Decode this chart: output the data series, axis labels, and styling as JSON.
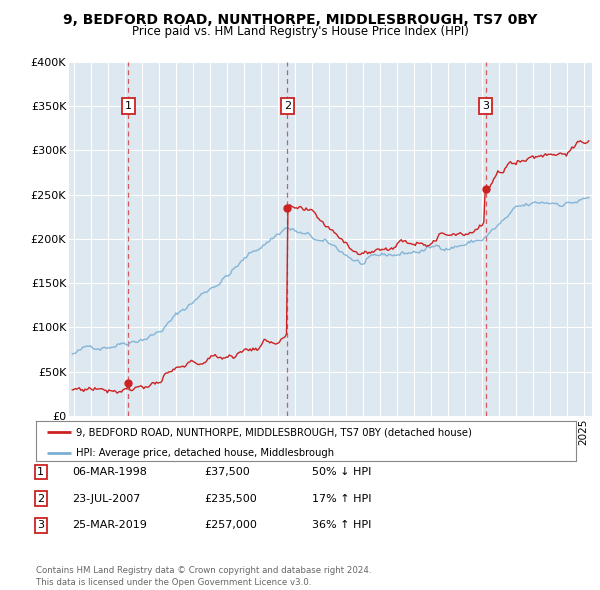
{
  "title": "9, BEDFORD ROAD, NUNTHORPE, MIDDLESBROUGH, TS7 0BY",
  "subtitle": "Price paid vs. HM Land Registry's House Price Index (HPI)",
  "ylim": [
    0,
    400000
  ],
  "yticks": [
    0,
    50000,
    100000,
    150000,
    200000,
    250000,
    300000,
    350000,
    400000
  ],
  "ytick_labels": [
    "£0",
    "£50K",
    "£100K",
    "£150K",
    "£200K",
    "£250K",
    "£300K",
    "£350K",
    "£400K"
  ],
  "background_color": "#dde8f0",
  "red_color": "#cc2222",
  "blue_color": "#7bafd4",
  "sale_dates": [
    1998.18,
    2007.55,
    2019.23
  ],
  "sale_prices": [
    37500,
    235500,
    257000
  ],
  "sale_labels": [
    "1",
    "2",
    "3"
  ],
  "legend_line1": "9, BEDFORD ROAD, NUNTHORPE, MIDDLESBROUGH, TS7 0BY (detached house)",
  "legend_line2": "HPI: Average price, detached house, Middlesbrough",
  "table_rows": [
    [
      "1",
      "06-MAR-1998",
      "£37,500",
      "50% ↓ HPI"
    ],
    [
      "2",
      "23-JUL-2007",
      "£235,500",
      "17% ↑ HPI"
    ],
    [
      "3",
      "25-MAR-2019",
      "£257,000",
      "36% ↑ HPI"
    ]
  ],
  "footer": "Contains HM Land Registry data © Crown copyright and database right 2024.\nThis data is licensed under the Open Government Licence v3.0.",
  "xlim_start": 1994.7,
  "xlim_end": 2025.5
}
